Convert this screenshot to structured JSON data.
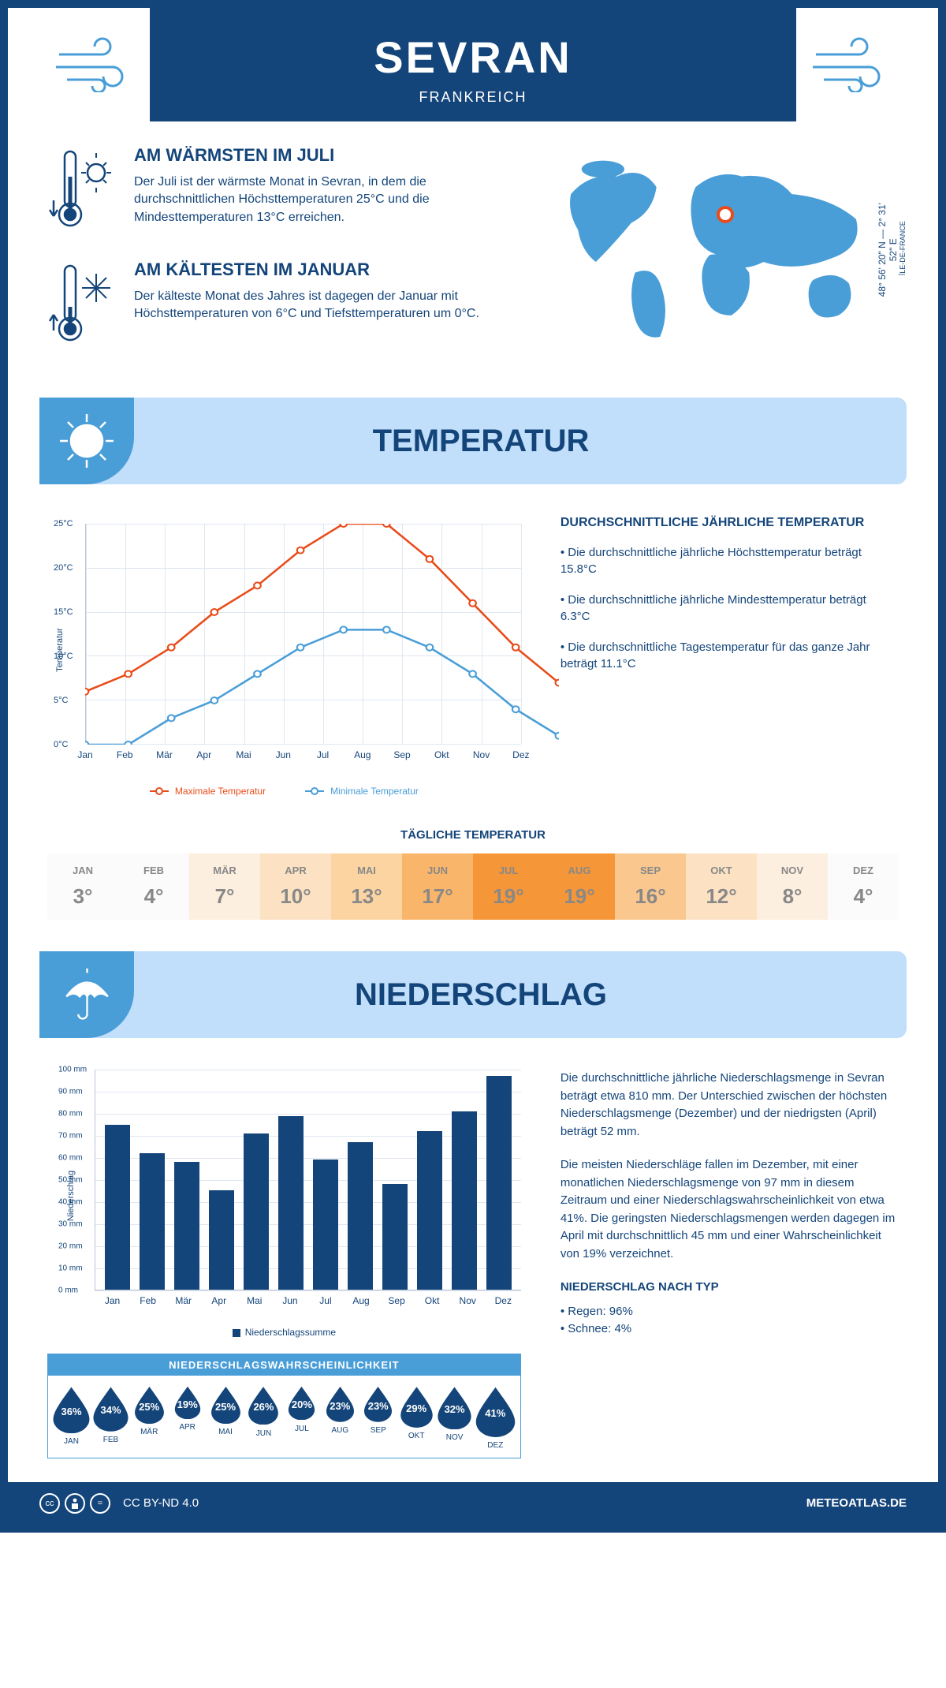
{
  "header": {
    "city": "SEVRAN",
    "country": "FRANKREICH"
  },
  "coords": {
    "lat": "48° 56' 20\" N",
    "sep": " — ",
    "lon": "2° 31' 52\" E",
    "region": "ÎLE-DE-FRANCE"
  },
  "intro": {
    "warm": {
      "title": "AM WÄRMSTEN IM JULI",
      "text": "Der Juli ist der wärmste Monat in Sevran, in dem die durchschnittlichen Höchsttemperaturen 25°C und die Mindesttemperaturen 13°C erreichen."
    },
    "cold": {
      "title": "AM KÄLTESTEN IM JANUAR",
      "text": "Der kälteste Monat des Jahres ist dagegen der Januar mit Höchsttemperaturen von 6°C und Tiefsttemperaturen um 0°C."
    }
  },
  "sections": {
    "temp": "TEMPERATUR",
    "precip": "NIEDERSCHLAG"
  },
  "months_short": [
    "Jan",
    "Feb",
    "Mär",
    "Apr",
    "Mai",
    "Jun",
    "Jul",
    "Aug",
    "Sep",
    "Okt",
    "Nov",
    "Dez"
  ],
  "months_caps": [
    "JAN",
    "FEB",
    "MÄR",
    "APR",
    "MAI",
    "JUN",
    "JUL",
    "AUG",
    "SEP",
    "OKT",
    "NOV",
    "DEZ"
  ],
  "temp_chart": {
    "ylabel": "Temperatur",
    "ylim": [
      0,
      25
    ],
    "ytick_step": 5,
    "y_suffix": "°C",
    "max_series": {
      "label": "Maximale Temperatur",
      "color": "#e84c1a",
      "values": [
        6,
        8,
        11,
        15,
        18,
        22,
        25,
        25,
        21,
        16,
        11,
        7
      ]
    },
    "min_series": {
      "label": "Minimale Temperatur",
      "color": "#4a9ed8",
      "values": [
        0,
        0,
        3,
        5,
        8,
        11,
        13,
        13,
        11,
        8,
        4,
        1
      ]
    }
  },
  "temp_desc": {
    "heading": "DURCHSCHNITTLICHE JÄHRLICHE TEMPERATUR",
    "b1": "• Die durchschnittliche jährliche Höchsttemperatur beträgt 15.8°C",
    "b2": "• Die durchschnittliche jährliche Mindesttemperatur beträgt 6.3°C",
    "b3": "• Die durchschnittliche Tagestemperatur für das ganze Jahr beträgt 11.1°C"
  },
  "daily": {
    "title": "TÄGLICHE TEMPERATUR",
    "values": [
      3,
      4,
      7,
      10,
      13,
      17,
      19,
      19,
      16,
      12,
      8,
      4
    ],
    "suffix": "°",
    "colors": [
      "#fbfbfb",
      "#fbfbfb",
      "#fcefdf",
      "#fce2c2",
      "#fbd4a2",
      "#f9b56a",
      "#f59638",
      "#f59638",
      "#fac78f",
      "#fce2c2",
      "#fcefdf",
      "#fbfbfb"
    ]
  },
  "precip_chart": {
    "ylabel": "Niederschlag",
    "ylim": [
      0,
      100
    ],
    "ytick_step": 10,
    "y_suffix": " mm",
    "values": [
      75,
      62,
      58,
      45,
      71,
      79,
      59,
      67,
      48,
      72,
      81,
      97
    ],
    "bar_color": "#14457a",
    "legend": "Niederschlagssumme"
  },
  "precip_desc": {
    "p1": "Die durchschnittliche jährliche Niederschlagsmenge in Sevran beträgt etwa 810 mm. Der Unterschied zwischen der höchsten Niederschlagsmenge (Dezember) und der niedrigsten (April) beträgt 52 mm.",
    "p2": "Die meisten Niederschläge fallen im Dezember, mit einer monatlichen Niederschlagsmenge von 97 mm in diesem Zeitraum und einer Niederschlagswahrscheinlichkeit von etwa 41%. Die geringsten Niederschlagsmengen werden dagegen im April mit durchschnittlich 45 mm und einer Wahrscheinlichkeit von 19% verzeichnet.",
    "type_h": "NIEDERSCHLAG NACH TYP",
    "type_1": "• Regen: 96%",
    "type_2": "• Schnee: 4%"
  },
  "prob": {
    "title": "NIEDERSCHLAGSWAHRSCHEINLICHKEIT",
    "values": [
      36,
      34,
      25,
      19,
      25,
      26,
      20,
      23,
      23,
      29,
      32,
      41
    ],
    "drop_color": "#14457a"
  },
  "footer": {
    "license": "CC BY-ND 4.0",
    "site": "METEOATLAS.DE"
  },
  "colors": {
    "brand": "#14457a",
    "accent": "#4a9ed8",
    "header_band": "#c1defa",
    "orange": "#e84c1a"
  }
}
